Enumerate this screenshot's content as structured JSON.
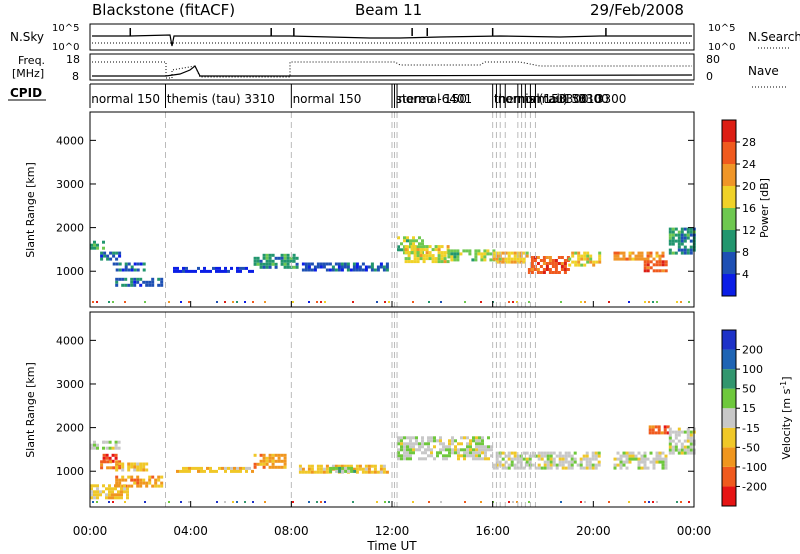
{
  "header": {
    "title": "Blackstone (fitACF)",
    "beam": "Beam 11",
    "date": "29/Feb/2008"
  },
  "strip_labels": {
    "nsky": "N.Sky",
    "nsearch": "N.Search",
    "freq_line1": "Freq.",
    "freq_line2": "[MHz]",
    "nave": "Nave",
    "cpid": "CPID",
    "nsky_ticks": [
      "10^5",
      "10^0"
    ],
    "nsearch_ticks": [
      "10^5",
      "10^0"
    ],
    "freq_ticks": [
      "18",
      "8"
    ],
    "nave_ticks": [
      "80",
      "0"
    ]
  },
  "cpid_labels": [
    {
      "text": "normal 150",
      "hour": 0.05
    },
    {
      "text": "themis (tau) 3310",
      "hour": 3.05
    },
    {
      "text": "normal 150",
      "hour": 8.05
    },
    {
      "text": "stereo -6401",
      "hour": 12.15
    },
    {
      "text": "normal 150",
      "hour": 12.25
    },
    {
      "text": "themis (tau) 3310",
      "hour": 16.05
    },
    {
      "text": "normal 150",
      "hour": 16.2
    },
    {
      "text": "normal 150",
      "hour": 17.0
    },
    {
      "text": "3300",
      "hour": 18.6
    },
    {
      "text": "3300",
      "hour": 19.4
    },
    {
      "text": "3300",
      "hour": 20.1
    }
  ],
  "cpid_change_hours": [
    3.0,
    8.0,
    12.0,
    12.1,
    12.2,
    16.0,
    16.15,
    16.3,
    16.5,
    17.0,
    17.15,
    17.3,
    17.5,
    17.7
  ],
  "power_colorbar": {
    "label": "Power [dB]",
    "ticks": [
      "4",
      "8",
      "12",
      "16",
      "20",
      "24",
      "28"
    ],
    "colors": [
      "#0b1ee6",
      "#1e50b4",
      "#22966e",
      "#6ec850",
      "#f0d228",
      "#f09628",
      "#f05a1e",
      "#dc1e14"
    ]
  },
  "velocity_colorbar": {
    "label_main": "Velocity [m s",
    "label_sup": "-1",
    "label_end": "]",
    "ticks": [
      "-200",
      "-100",
      "-50",
      "-15",
      "15",
      "50",
      "100",
      "200"
    ],
    "colors": [
      "#e61414",
      "#f05a1e",
      "#f0961e",
      "#f0c828",
      "#c8c8c8",
      "#6ec83c",
      "#32966e",
      "#1e64b4",
      "#1e32c8"
    ]
  },
  "chart_data": {
    "type": "heatmap",
    "x_axis": {
      "label": "Time UT",
      "range_hours": [
        0,
        24
      ],
      "tick_labels": [
        "00:00",
        "04:00",
        "08:00",
        "12:00",
        "16:00",
        "20:00",
        "00:00"
      ]
    },
    "y_axis": {
      "label": "Slant Range [km]",
      "range_km": [
        180,
        4650
      ],
      "tick_values": [
        1000,
        2000,
        3000,
        4000
      ]
    },
    "power_segments": [
      {
        "t0": 0.0,
        "t1": 0.5,
        "r0": 1500,
        "r1": 1700,
        "level": 2
      },
      {
        "t0": 0.4,
        "t1": 1.2,
        "r0": 1250,
        "r1": 1450,
        "level": 1
      },
      {
        "t0": 0.9,
        "t1": 2.2,
        "r0": 1000,
        "r1": 1200,
        "level": 1
      },
      {
        "t0": 1.0,
        "t1": 2.8,
        "r0": 650,
        "r1": 850,
        "level": 1
      },
      {
        "t0": 3.3,
        "t1": 6.5,
        "r0": 1000,
        "r1": 1100,
        "level": 0
      },
      {
        "t0": 6.5,
        "t1": 8.2,
        "r0": 1100,
        "r1": 1400,
        "level": 2
      },
      {
        "t0": 8.3,
        "t1": 11.8,
        "r0": 1000,
        "r1": 1200,
        "level": 1
      },
      {
        "t0": 12.2,
        "t1": 13.2,
        "r0": 1450,
        "r1": 1800,
        "level": 3
      },
      {
        "t0": 12.5,
        "t1": 14.2,
        "r0": 1250,
        "r1": 1600,
        "level": 4
      },
      {
        "t0": 14.2,
        "t1": 16.0,
        "r0": 1250,
        "r1": 1500,
        "level": 3
      },
      {
        "t0": 16.0,
        "t1": 17.4,
        "r0": 1200,
        "r1": 1450,
        "level": 4
      },
      {
        "t0": 17.4,
        "t1": 19.0,
        "r0": 950,
        "r1": 1350,
        "level": 6
      },
      {
        "t0": 19.0,
        "t1": 20.2,
        "r0": 1150,
        "r1": 1450,
        "level": 4
      },
      {
        "t0": 20.8,
        "t1": 22.8,
        "r0": 1250,
        "r1": 1450,
        "level": 5
      },
      {
        "t0": 22.0,
        "t1": 22.9,
        "r0": 1000,
        "r1": 1250,
        "level": 6
      },
      {
        "t0": 23.0,
        "t1": 24.0,
        "r0": 1400,
        "r1": 2000,
        "level": 2
      }
    ],
    "velocity_segments": [
      {
        "t0": 0.0,
        "t1": 0.5,
        "r0": 1500,
        "r1": 1700,
        "level": 4
      },
      {
        "t0": 0.5,
        "t1": 1.0,
        "r0": 1250,
        "r1": 1400,
        "level": 0
      },
      {
        "t0": 0.5,
        "t1": 1.2,
        "r0": 1500,
        "r1": 1700,
        "level": 4
      },
      {
        "t0": 0.4,
        "t1": 1.2,
        "r0": 1100,
        "r1": 1250,
        "level": 1
      },
      {
        "t0": 1.0,
        "t1": 2.8,
        "r0": 650,
        "r1": 900,
        "level": 2
      },
      {
        "t0": 1.0,
        "t1": 2.3,
        "r0": 1000,
        "r1": 1200,
        "level": 3
      },
      {
        "t0": 3.3,
        "t1": 6.5,
        "r0": 1000,
        "r1": 1100,
        "level": 3
      },
      {
        "t0": 6.5,
        "t1": 7.8,
        "r0": 1100,
        "r1": 1400,
        "level": 2
      },
      {
        "t0": 8.3,
        "t1": 11.8,
        "r0": 1000,
        "r1": 1150,
        "level": 3
      },
      {
        "t0": 9.5,
        "t1": 10.5,
        "r0": 1000,
        "r1": 1100,
        "level": 5
      },
      {
        "t0": 12.2,
        "t1": 16.0,
        "r0": 1250,
        "r1": 1800,
        "level": 4
      },
      {
        "t0": 16.0,
        "t1": 20.2,
        "r0": 1050,
        "r1": 1450,
        "level": 4
      },
      {
        "t0": 20.8,
        "t1": 22.9,
        "r0": 1050,
        "r1": 1450,
        "level": 4
      },
      {
        "t0": 22.2,
        "t1": 23.0,
        "r0": 1900,
        "r1": 2050,
        "level": 1
      },
      {
        "t0": 23.0,
        "t1": 24.0,
        "r0": 1400,
        "r1": 2000,
        "level": 4
      },
      {
        "t0": 0.0,
        "t1": 1.5,
        "r0": 400,
        "r1": 700,
        "level": 3
      }
    ]
  }
}
